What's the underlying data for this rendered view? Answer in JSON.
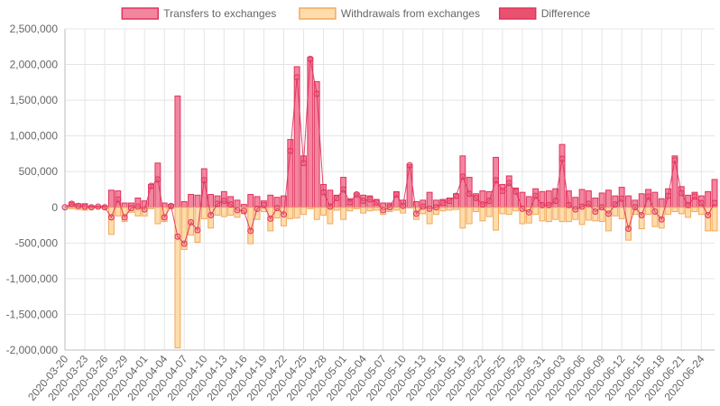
{
  "chart_data": {
    "type": "bar",
    "title": "",
    "xlabel": "",
    "ylabel": "",
    "ylim": [
      -2000000,
      2500000
    ],
    "y_ticks": [
      2500000,
      2000000,
      1500000,
      1000000,
      500000,
      0,
      -500000,
      -1000000,
      -1500000,
      -2000000
    ],
    "y_tick_labels": [
      "2,500,000",
      "2,000,000",
      "1,500,000",
      "1,000,000",
      "500,000",
      "0",
      "-500,000",
      "-1,000,000",
      "-1,500,000",
      "-2,000,000"
    ],
    "x_tick_labels": [
      "2020-03-20",
      "2020-03-23",
      "2020-03-26",
      "2020-03-29",
      "2020-04-01",
      "2020-04-04",
      "2020-04-07",
      "2020-04-10",
      "2020-04-13",
      "2020-04-16",
      "2020-04-19",
      "2020-04-22",
      "2020-04-25",
      "2020-04-28",
      "2020-05-01",
      "2020-05-04",
      "2020-05-07",
      "2020-05-10",
      "2020-05-13",
      "2020-05-16",
      "2020-05-19",
      "2020-05-22",
      "2020-05-25",
      "2020-05-28",
      "2020-05-31",
      "2020-06-03",
      "2020-06-06",
      "2020-06-09",
      "2020-06-12",
      "2020-06-15",
      "2020-06-18",
      "2020-06-21",
      "2020-06-24"
    ],
    "grid": true,
    "legend_position": "top-center",
    "colors": {
      "transfers_fill": "#f2869f",
      "transfers_stroke": "#e0335e",
      "withdrawals_fill": "#ffdcab",
      "withdrawals_stroke": "#f1a95c",
      "difference_fill": "#e8526f",
      "difference_stroke": "#e0335e",
      "grid": "#e5e5e5",
      "axis": "#bdbdbd",
      "text": "#666666"
    },
    "series": [
      {
        "name": "Transfers to exchanges",
        "values": [
          0,
          70000,
          50000,
          50000,
          20000,
          20000,
          20000,
          240000,
          230000,
          60000,
          60000,
          130000,
          90000,
          320000,
          620000,
          60000,
          40000,
          1560000,
          80000,
          180000,
          170000,
          540000,
          180000,
          160000,
          220000,
          150000,
          100000,
          40000,
          180000,
          150000,
          90000,
          170000,
          140000,
          160000,
          950000,
          1970000,
          720000,
          2100000,
          1760000,
          320000,
          240000,
          170000,
          420000,
          120000,
          200000,
          170000,
          160000,
          110000,
          60000,
          60000,
          220000,
          100000,
          600000,
          80000,
          100000,
          210000,
          100000,
          110000,
          130000,
          190000,
          720000,
          420000,
          190000,
          230000,
          220000,
          700000,
          320000,
          440000,
          270000,
          210000,
          150000,
          260000,
          220000,
          230000,
          260000,
          880000,
          230000,
          140000,
          250000,
          230000,
          130000,
          200000,
          240000,
          160000,
          280000,
          160000,
          100000,
          190000,
          250000,
          210000,
          120000,
          260000,
          720000,
          290000,
          170000,
          210000,
          160000,
          220000,
          390000
        ]
      },
      {
        "name": "Withdrawals from exchanges",
        "values": [
          0,
          -20000,
          -30000,
          -40000,
          -20000,
          -10000,
          -20000,
          -380000,
          -120000,
          -200000,
          -70000,
          -120000,
          -120000,
          -20000,
          -230000,
          -200000,
          -20000,
          -1970000,
          -590000,
          -390000,
          -490000,
          -160000,
          -290000,
          -110000,
          -130000,
          -110000,
          -140000,
          -90000,
          -510000,
          -170000,
          -60000,
          -330000,
          -150000,
          -260000,
          -160000,
          -150000,
          -100000,
          -20000,
          -170000,
          -110000,
          -230000,
          -40000,
          -170000,
          -50000,
          -20000,
          -80000,
          -50000,
          -40000,
          -100000,
          -60000,
          -40000,
          -80000,
          -10000,
          -170000,
          -90000,
          -230000,
          -100000,
          -50000,
          -40000,
          -30000,
          -290000,
          -230000,
          -60000,
          -190000,
          -130000,
          -320000,
          -90000,
          -100000,
          -50000,
          -230000,
          -220000,
          -100000,
          -190000,
          -200000,
          -170000,
          -200000,
          -200000,
          -170000,
          -240000,
          -180000,
          -190000,
          -200000,
          -330000,
          -120000,
          -160000,
          -460000,
          -100000,
          -300000,
          -100000,
          -270000,
          -290000,
          -100000,
          -60000,
          -90000,
          -140000,
          -60000,
          -100000,
          -330000,
          -330000
        ]
      },
      {
        "name": "Difference",
        "values": [
          0,
          50000,
          20000,
          10000,
          0,
          10000,
          0,
          -140000,
          110000,
          -140000,
          -10000,
          10000,
          -30000,
          300000,
          390000,
          -140000,
          20000,
          -410000,
          -510000,
          -210000,
          -320000,
          380000,
          -110000,
          50000,
          90000,
          40000,
          -40000,
          -50000,
          -330000,
          -20000,
          30000,
          -160000,
          -10000,
          -100000,
          790000,
          1820000,
          620000,
          2080000,
          1590000,
          210000,
          10000,
          130000,
          250000,
          70000,
          180000,
          90000,
          110000,
          70000,
          -40000,
          0,
          180000,
          20000,
          590000,
          -90000,
          10000,
          -20000,
          0,
          60000,
          90000,
          160000,
          430000,
          190000,
          130000,
          40000,
          90000,
          380000,
          230000,
          340000,
          220000,
          -20000,
          -70000,
          160000,
          30000,
          30000,
          90000,
          680000,
          30000,
          -30000,
          10000,
          50000,
          -60000,
          0,
          -90000,
          40000,
          120000,
          -300000,
          0,
          -110000,
          150000,
          -60000,
          -170000,
          160000,
          660000,
          200000,
          30000,
          150000,
          60000,
          -110000,
          60000
        ]
      }
    ]
  }
}
